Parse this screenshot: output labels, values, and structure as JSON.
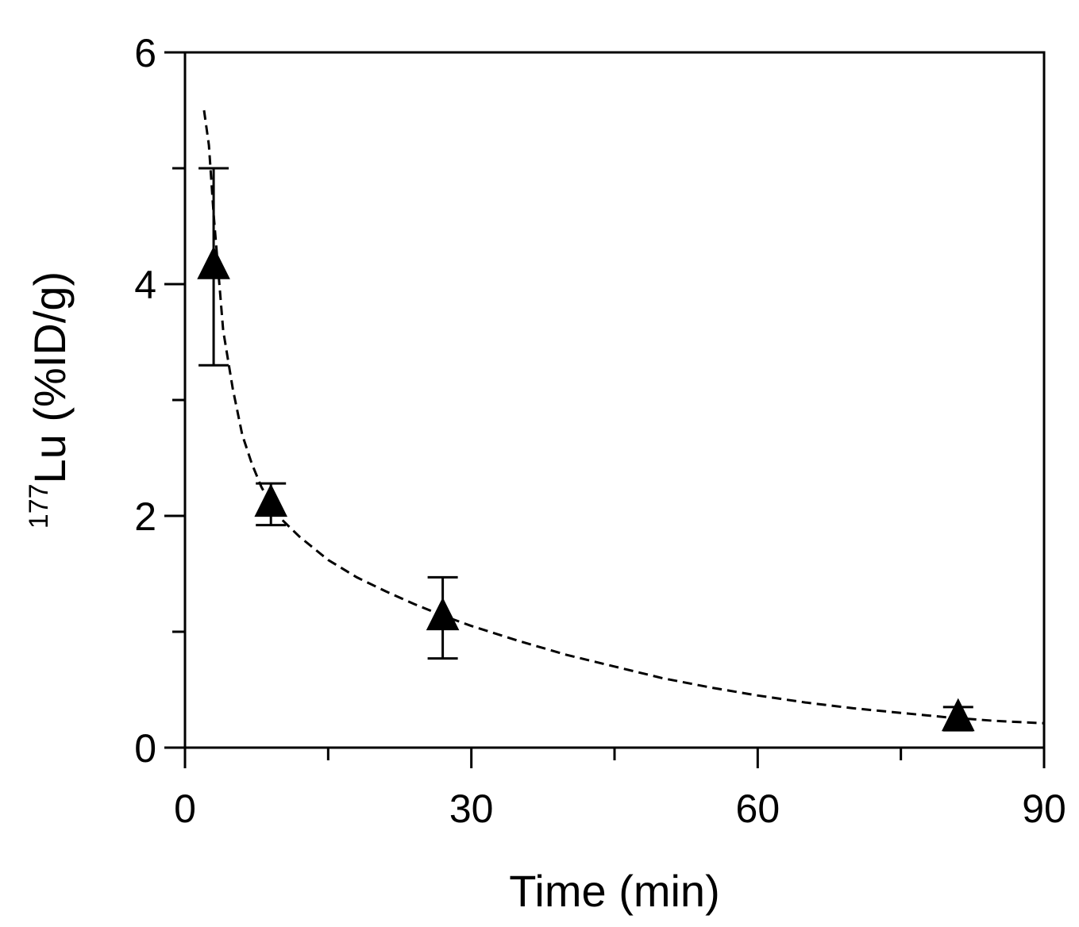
{
  "chart_data": {
    "type": "scatter",
    "title": "",
    "xlabel": "Time (min)",
    "ylabel_sup": "177",
    "ylabel_main": "Lu (%ID/g)",
    "xlim": [
      0,
      90
    ],
    "ylim": [
      0,
      6
    ],
    "x_ticks": [
      0,
      30,
      60,
      90
    ],
    "x_tick_labels": [
      "0",
      "30",
      "60",
      "90"
    ],
    "x_minor_ticks": [
      15,
      45,
      75
    ],
    "y_ticks": [
      0,
      2,
      4,
      6
    ],
    "y_tick_labels": [
      "0",
      "2",
      "4",
      "6"
    ],
    "y_minor_ticks": [
      1,
      3,
      5
    ],
    "grid": false,
    "legend": "none",
    "series": [
      {
        "marker": "triangle",
        "color": "#000000",
        "x": [
          3,
          9,
          27,
          81
        ],
        "y": [
          4.15,
          2.1,
          1.12,
          0.25
        ],
        "error": [
          0.85,
          0.18,
          0.35,
          0.1
        ]
      }
    ],
    "fit_curve": {
      "style": "dashed",
      "color": "#000000",
      "x": [
        2,
        2.5,
        3,
        3.5,
        4,
        5,
        6,
        7,
        8,
        9,
        10,
        12,
        15,
        18,
        21,
        24,
        27,
        30,
        35,
        40,
        45,
        50,
        55,
        60,
        65,
        70,
        75,
        80,
        85,
        90
      ],
      "y": [
        5.5,
        5.2,
        4.6,
        4.1,
        3.6,
        3.1,
        2.7,
        2.45,
        2.25,
        2.1,
        1.98,
        1.82,
        1.62,
        1.47,
        1.35,
        1.24,
        1.14,
        1.05,
        0.92,
        0.8,
        0.7,
        0.6,
        0.52,
        0.45,
        0.39,
        0.34,
        0.3,
        0.26,
        0.23,
        0.21
      ]
    }
  }
}
